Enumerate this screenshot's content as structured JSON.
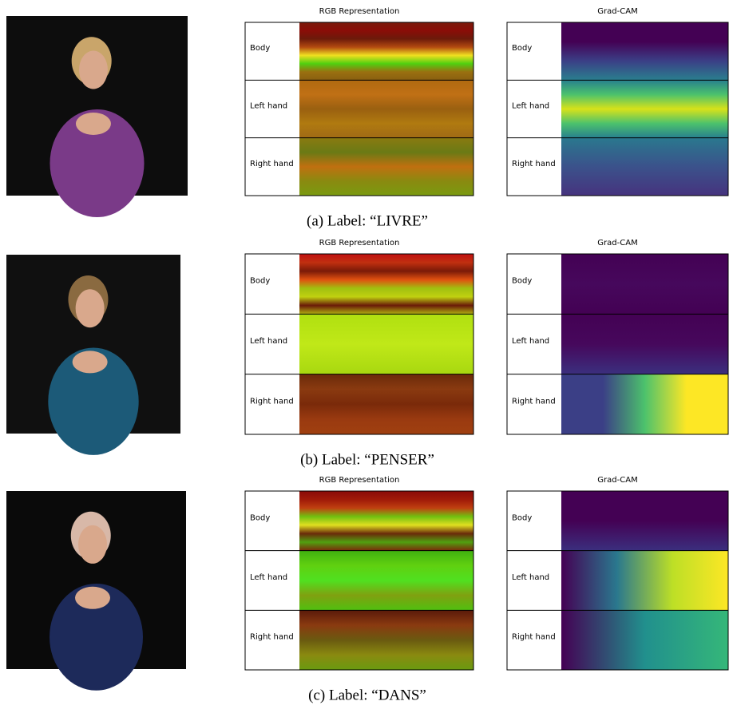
{
  "figures": [
    {
      "rgb": {
        "title": "RGB Representation",
        "rows": [
          "Body",
          "Left hand",
          "Right hand"
        ]
      },
      "gradcam": {
        "title": "Grad-CAM",
        "rows": [
          "Body",
          "Left hand",
          "Right hand"
        ]
      },
      "caption": "(a) Label: “LIVRE”"
    },
    {
      "rgb": {
        "title": "RGB Representation",
        "rows": [
          "Body",
          "Left hand",
          "Right hand"
        ]
      },
      "gradcam": {
        "title": "Grad-CAM",
        "rows": [
          "Body",
          "Left hand",
          "Right hand"
        ]
      },
      "caption": "(b) Label: “PENSER”"
    },
    {
      "rgb": {
        "title": "RGB Representation",
        "rows": [
          "Body",
          "Left hand",
          "Right hand"
        ]
      },
      "gradcam": {
        "title": "Grad-CAM",
        "rows": [
          "Body",
          "Left hand",
          "Right hand"
        ]
      },
      "caption": "(c) Label: “DANS”"
    }
  ]
}
